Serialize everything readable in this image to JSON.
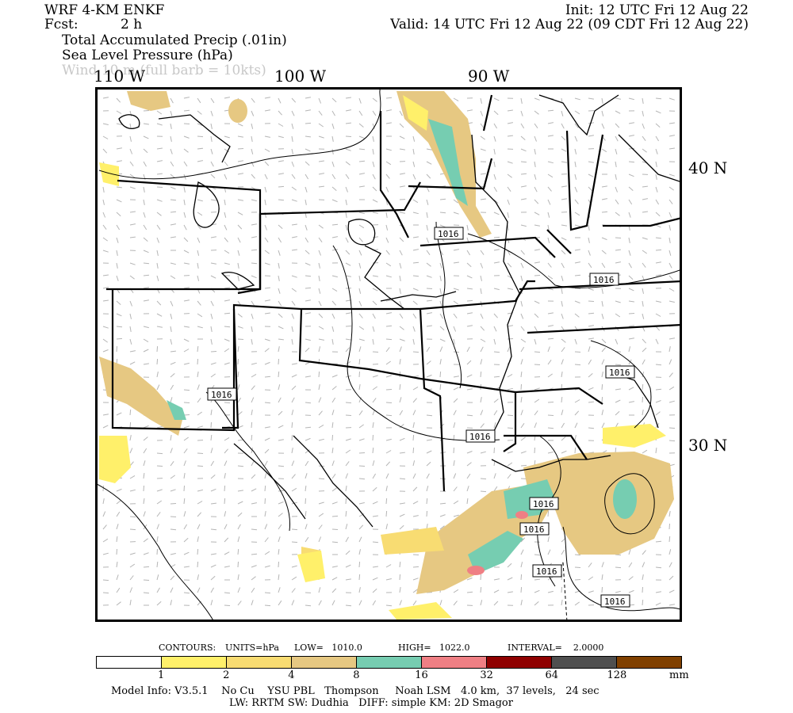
{
  "header": {
    "model": "WRF 4-KM ENKF",
    "fcst_label": "Fcst:",
    "fcst_value": "2 h",
    "init": "Init: 12 UTC Fri 12 Aug 22",
    "valid": "Valid: 14 UTC Fri 12 Aug 22 (09 CDT Fri 12 Aug 22)",
    "field1": "Total Accumulated Precip (.01in)",
    "field2": "Sea Level Pressure (hPa)",
    "field3": "Wind 10 m (full barb = 10kts)"
  },
  "axes": {
    "lon_labels": [
      "110 W",
      "100 W",
      "90 W"
    ],
    "lat_labels": [
      "40 N",
      "30 N"
    ]
  },
  "isobar_labels": [
    "1016",
    "1016",
    "1016",
    "1016",
    "1016",
    "1016",
    "1016",
    "1016",
    "1016"
  ],
  "contour_info": {
    "contours": "CONTOURS:",
    "units": "UNITS=hPa",
    "low": "LOW=   1010.0",
    "high": "HIGH=   1022.0",
    "interval": "INTERVAL=    2.0000"
  },
  "colorbar": {
    "colors": [
      "#ffffff",
      "#fff06a",
      "#f8dc72",
      "#e6c882",
      "#76cdb1",
      "#ef7f84",
      "#8f0000",
      "#4f4f4f",
      "#804000"
    ],
    "ticks": [
      "1",
      "2",
      "4",
      "8",
      "16",
      "32",
      "64",
      "128"
    ],
    "unit": "mm"
  },
  "footer": {
    "line1": "Model Info: V3.5.1    No Cu    YSU PBL   Thompson     Noah LSM   4.0 km,  37 levels,   24 sec",
    "line2": "LW: RRTM SW: Dudhia   DIFF: simple KM: 2D Smagor"
  }
}
